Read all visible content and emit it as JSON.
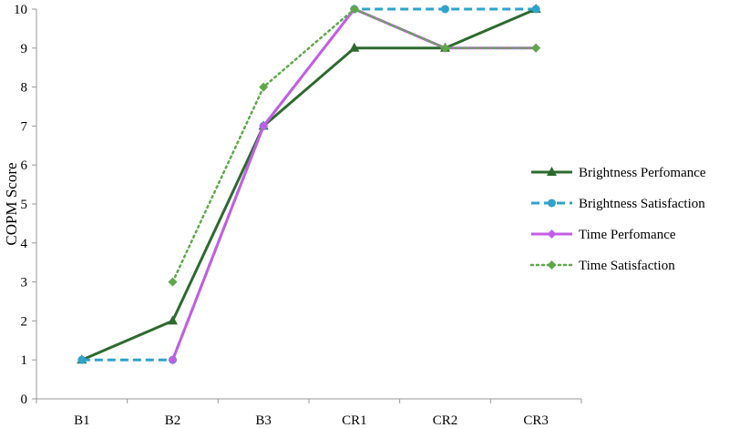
{
  "chart_data": {
    "type": "line",
    "title": "",
    "xlabel": "",
    "ylabel": "COPM Score",
    "categories": [
      "B1",
      "B2",
      "B3",
      "CR1",
      "CR2",
      "CR3"
    ],
    "ylim": [
      0,
      10
    ],
    "yticks": [
      0,
      1,
      2,
      3,
      4,
      5,
      6,
      7,
      8,
      9,
      10
    ],
    "grid": false,
    "legend_position": "right",
    "series": [
      {
        "name": "Brightness Perfomance",
        "values": [
          1,
          2,
          7,
          9,
          9,
          10
        ],
        "color": "#2d6a2e",
        "dash": "solid",
        "marker": "triangle"
      },
      {
        "name": "Brightness Satisfaction",
        "values": [
          1,
          1,
          7,
          10,
          10,
          10
        ],
        "color": "#2fa3cc",
        "dash": "dashed",
        "marker": "circle"
      },
      {
        "name": "Time Perfomance",
        "values": [
          null,
          1,
          7,
          10,
          9,
          9
        ],
        "color": "#c25ee6",
        "dash": "solid",
        "marker": "diamond"
      },
      {
        "name": "Time Satisfaction",
        "values": [
          null,
          3,
          8,
          10,
          9,
          9
        ],
        "color": "#5fa84a",
        "dash": "dotted",
        "marker": "diamond"
      }
    ]
  }
}
